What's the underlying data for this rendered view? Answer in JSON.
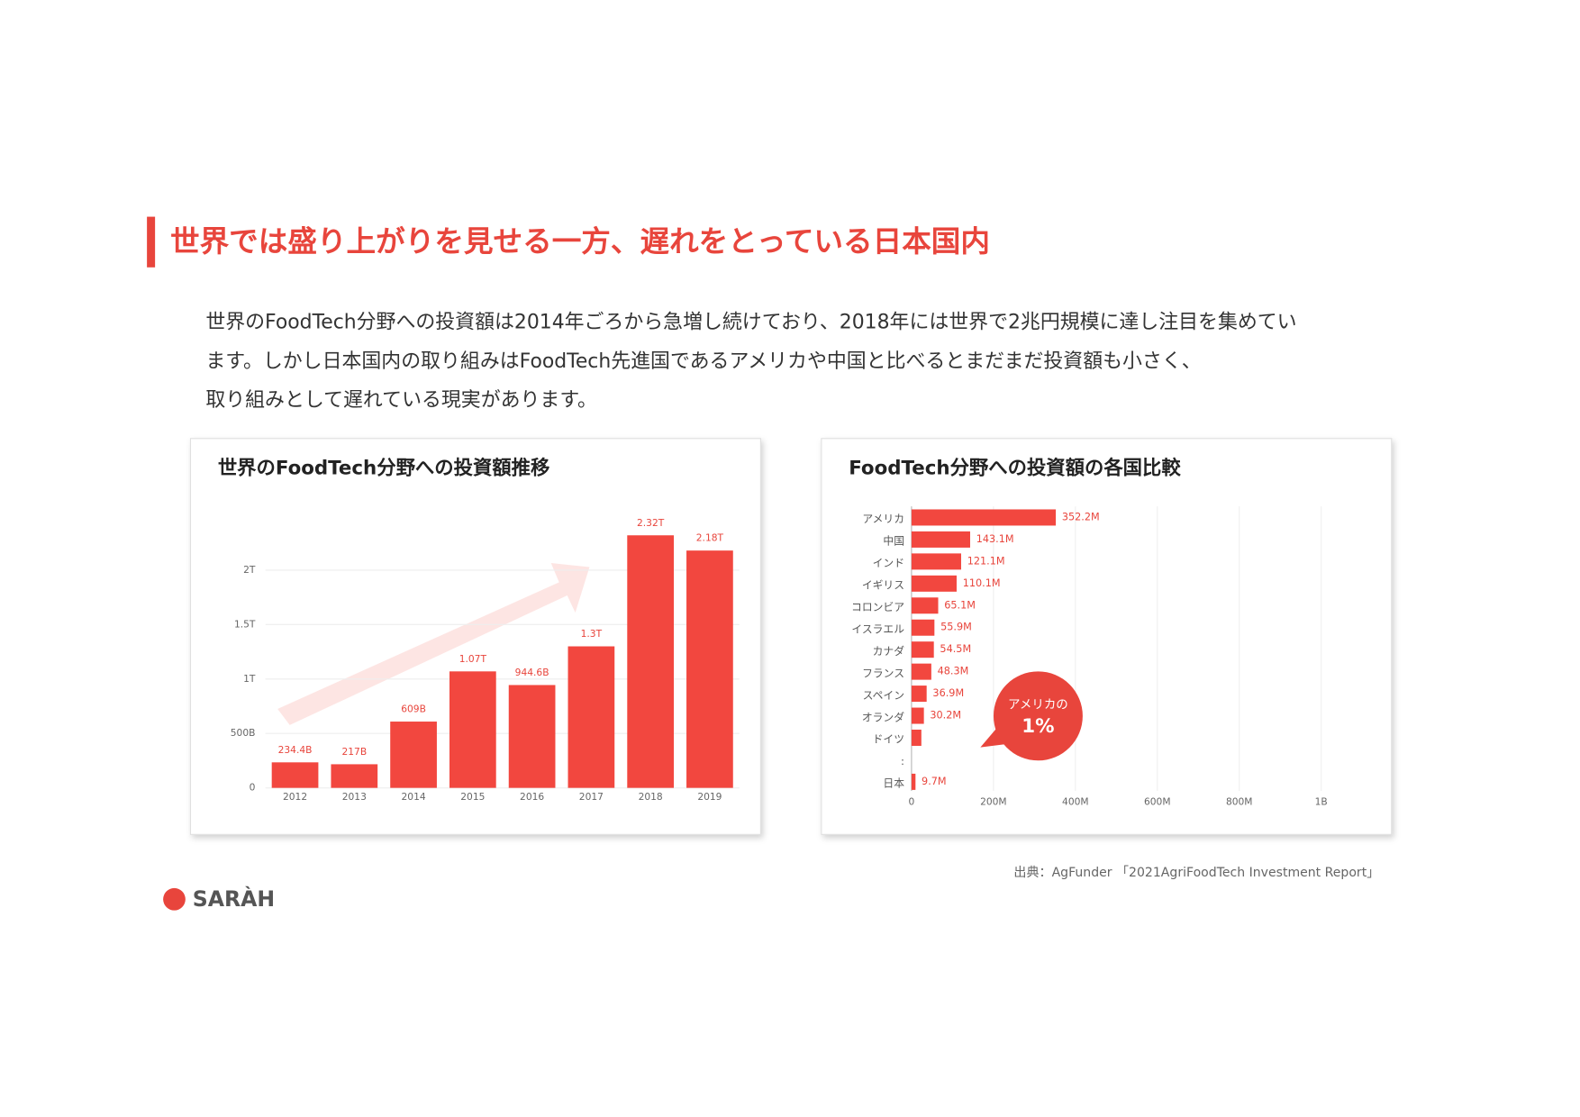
{
  "header": {
    "title": "世界では盛り上がりを見せる一方、遅れをとっている日本国内"
  },
  "body": {
    "lines": [
      "世界のFoodTech分野への投資額は2014年ごろから急増し続けており、2018年には世界で2兆円規模に達し注目を集めてい",
      "ます。しかし日本国内の取り組みはFoodTech先進国であるアメリカや中国と比べるとまだまだ投資額も小さく、",
      "取り組みとして遅れている現実があります。"
    ]
  },
  "chart_data": [
    {
      "type": "bar",
      "title": "世界のFoodTech分野への投資額推移",
      "color": "#f2473f",
      "categories": [
        "2012",
        "2013",
        "2014",
        "2015",
        "2016",
        "2017",
        "2018",
        "2019"
      ],
      "values": [
        234.4,
        217,
        609,
        1070,
        944.6,
        1300,
        2320,
        2180
      ],
      "value_labels": [
        "234.4B",
        "217B",
        "609B",
        "1.07T",
        "944.6B",
        "1.3T",
        "2.32T",
        "2.18T"
      ],
      "ylim": [
        0,
        2400
      ],
      "yticks": [
        0,
        {
          "value": 500,
          "label": "500B"
        },
        {
          "value": 1000,
          "label": "1T"
        },
        {
          "value": 1500,
          "label": "1.5T"
        },
        {
          "value": 2000,
          "label": "2T"
        }
      ],
      "grid": true
    },
    {
      "type": "barh",
      "title": "FoodTech分野への投資額の各国比較",
      "color": "#f2473f",
      "categories": [
        "アメリカ",
        "中国",
        "インド",
        "イギリス",
        "コロンビア",
        "イスラエル",
        "カナダ",
        "フランス",
        "スペイン",
        "オランダ",
        "ドイツ",
        ":",
        "日本"
      ],
      "values": [
        352.2,
        143.1,
        121.1,
        110.1,
        65.1,
        55.9,
        54.5,
        48.3,
        36.9,
        30.2,
        24,
        null,
        9.7
      ],
      "value_labels": [
        "352.2M",
        "143.1M",
        "121.1M",
        "110.1M",
        "65.1M",
        "55.9M",
        "54.5M",
        "48.3M",
        "36.9M",
        "30.2M",
        null,
        null,
        "9.7M"
      ],
      "xlim": [
        0,
        1100
      ],
      "xticks": [
        0,
        {
          "value": 200,
          "label": "200M"
        },
        {
          "value": 400,
          "label": "400M"
        },
        {
          "value": 600,
          "label": "600M"
        },
        {
          "value": 800,
          "label": "800M"
        },
        {
          "value": 1000,
          "label": "1B"
        }
      ],
      "grid": true,
      "annotations": [
        "アメリカの",
        "1%"
      ]
    }
  ],
  "footer": {
    "source": "出典：AgFunder 「2021AgriFoodTech Investment Report」",
    "logo": "SARÀH"
  }
}
